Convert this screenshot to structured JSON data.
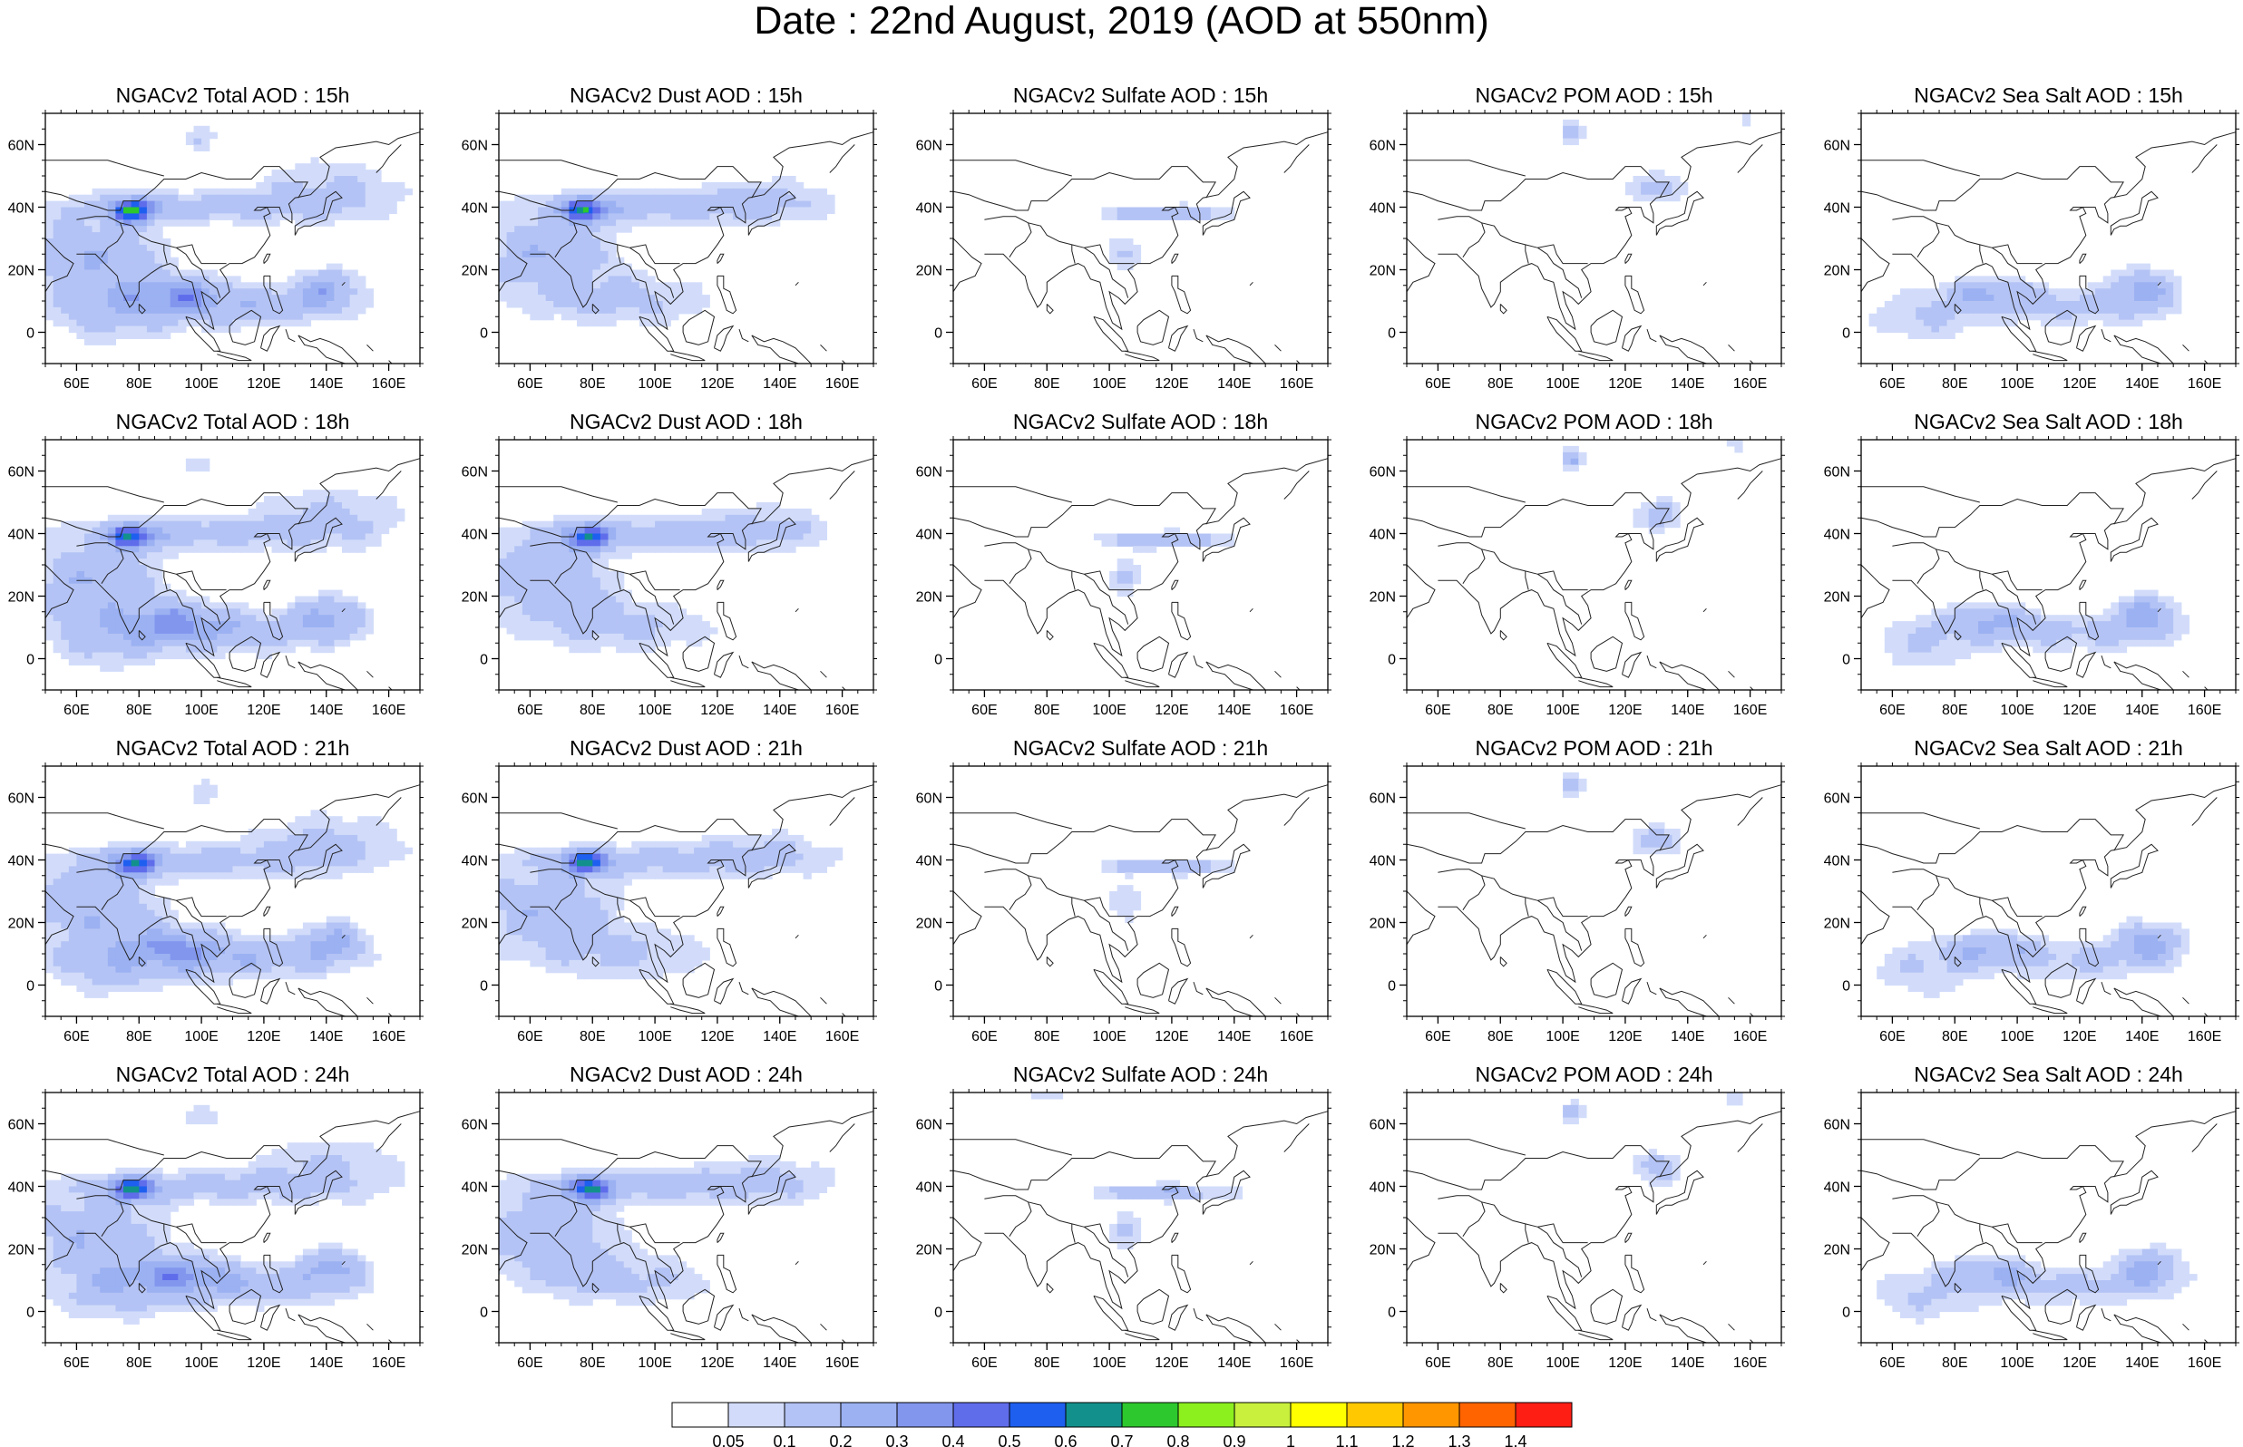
{
  "title": "Date : 22nd August, 2019 (AOD at 550nm)",
  "rows": [
    "15h",
    "18h",
    "21h",
    "24h"
  ],
  "panels": [
    [
      "NGACv2 Total AOD : 15h",
      "NGACv2 Dust AOD : 15h",
      "NGACv2 Sulfate AOD : 15h",
      "NGACv2 POM AOD : 15h",
      "NGACv2 Sea Salt AOD : 15h"
    ],
    [
      "NGACv2 Total AOD : 18h",
      "NGACv2 Dust AOD : 18h",
      "NGACv2 Sulfate AOD : 18h",
      "NGACv2 POM AOD : 18h",
      "NGACv2 Sea Salt AOD : 18h"
    ],
    [
      "NGACv2 Total AOD : 21h",
      "NGACv2 Dust AOD : 21h",
      "NGACv2 Sulfate AOD : 21h",
      "NGACv2 POM AOD : 21h",
      "NGACv2 Sea Salt AOD : 21h"
    ],
    [
      "NGACv2 Total AOD : 24h",
      "NGACv2 Dust AOD : 24h",
      "NGACv2 Sulfate AOD : 24h",
      "NGACv2 POM AOD : 24h",
      "NGACv2 Sea Salt  AOD : 24h"
    ]
  ],
  "axes": {
    "lon_ticks": [
      "60E",
      "80E",
      "100E",
      "120E",
      "140E",
      "160E"
    ],
    "lon_values": [
      60,
      80,
      100,
      120,
      140,
      160
    ],
    "lat_ticks": [
      "60N",
      "40N",
      "20N",
      "0"
    ],
    "lat_values": [
      60,
      40,
      20,
      0
    ],
    "lon_range": [
      50,
      170
    ],
    "lat_range": [
      -10,
      70
    ]
  },
  "colorbar": {
    "labels": [
      "0.05",
      "0.1",
      "0.2",
      "0.3",
      "0.4",
      "0.5",
      "0.6",
      "0.7",
      "0.8",
      "0.9",
      "1",
      "1.1",
      "1.2",
      "1.3",
      "1.4"
    ],
    "colors": [
      "#ffffff",
      "#d2dcfa",
      "#b4c3f5",
      "#9bb1f2",
      "#8296ee",
      "#5f6deb",
      "#1e5ff0",
      "#12918c",
      "#2dc82d",
      "#8cf01e",
      "#c8f03c",
      "#ffff00",
      "#ffc800",
      "#ff9600",
      "#ff6400",
      "#ff1e14"
    ]
  },
  "chart_data": [
    {
      "type": "heatmap",
      "title": "NGACv2 Total AOD",
      "x_axis": "longitude",
      "y_axis": "latitude",
      "xlim": [
        50,
        170
      ],
      "ylim": [
        -10,
        70
      ],
      "times": [
        "15h",
        "18h",
        "21h",
        "24h"
      ],
      "notes_levels": "AOD mostly 0.05-0.3 over the domain; peaks 0.4-0.6 over NW China (~40N, 78E), Bay of Bengal (~13N, 92E) and W Pacific (~15N, 140E)"
    },
    {
      "type": "heatmap",
      "title": "NGACv2 Dust AOD",
      "x_axis": "longitude",
      "y_axis": "latitude",
      "xlim": [
        50,
        170
      ],
      "ylim": [
        -10,
        70
      ],
      "times": [
        "15h",
        "18h",
        "21h",
        "24h"
      ],
      "notes_levels": "AOD 0.05-0.3 over Arabia, Indian Ocean, Central Asia; peak ~0.5-0.7 over Taklimakan (~40N, 78E)"
    },
    {
      "type": "heatmap",
      "title": "NGACv2 Sulfate AOD",
      "x_axis": "longitude",
      "y_axis": "latitude",
      "xlim": [
        50,
        170
      ],
      "ylim": [
        -10,
        70
      ],
      "times": [
        "15h",
        "18h",
        "21h",
        "24h"
      ],
      "notes_levels": "AOD 0.05-0.2 along East China band (~35-42N, 100-140E)"
    },
    {
      "type": "heatmap",
      "title": "NGACv2 POM AOD",
      "x_axis": "longitude",
      "y_axis": "latitude",
      "xlim": [
        50,
        170
      ],
      "ylim": [
        -10,
        70
      ],
      "times": [
        "15h",
        "18h",
        "21h",
        "24h"
      ],
      "notes_levels": "AOD 0.05-0.2 over Siberia (~65N, 105E) and NE China / Japan"
    },
    {
      "type": "heatmap",
      "title": "NGACv2 Sea Salt AOD",
      "x_axis": "longitude",
      "y_axis": "latitude",
      "xlim": [
        50,
        170
      ],
      "ylim": [
        -10,
        70
      ],
      "times": [
        "15h",
        "18h",
        "21h",
        "24h"
      ],
      "notes_levels": "AOD 0.05-0.3 over tropical oceans; peak ~0.3 near (15N, 140E)"
    }
  ]
}
